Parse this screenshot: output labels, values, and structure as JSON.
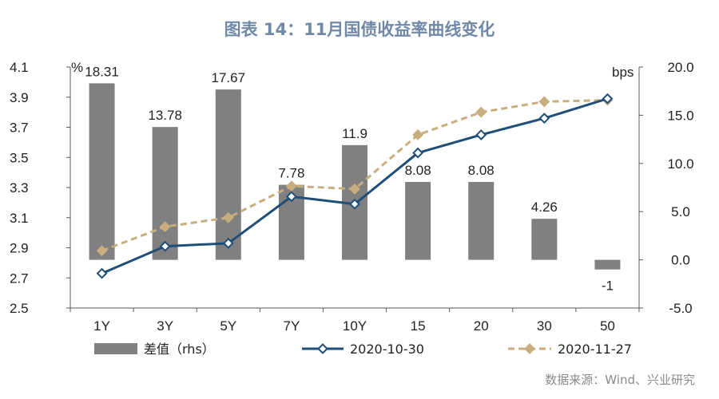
{
  "chart_data": {
    "type": "bar",
    "title": "图表 14：11月国债收益率曲线变化",
    "categories": [
      "1Y",
      "3Y",
      "5Y",
      "7Y",
      "10Y",
      "15",
      "20",
      "30",
      "50"
    ],
    "left_axis": {
      "unit": "%",
      "ylim": [
        2.5,
        4.1
      ],
      "ticks": [
        "2.5",
        "2.7",
        "2.9",
        "3.1",
        "3.3",
        "3.5",
        "3.7",
        "3.9",
        "4.1"
      ]
    },
    "right_axis": {
      "unit": "bps",
      "ylim": [
        -5,
        20
      ],
      "ticks": [
        "-5.0",
        "0.0",
        "5.0",
        "10.0",
        "15.0",
        "20.0"
      ]
    },
    "series": [
      {
        "name": "差值（rhs）",
        "type": "bar",
        "axis": "right",
        "color": "#808080",
        "values": [
          18.31,
          13.78,
          17.67,
          7.78,
          11.9,
          8.08,
          8.08,
          4.26,
          -1
        ],
        "labels": [
          "18.31",
          "13.78",
          "17.67",
          "7.78",
          "11.9",
          "8.08",
          "8.08",
          "4.26",
          "-1"
        ]
      },
      {
        "name": "2020-10-30",
        "type": "line",
        "axis": "left",
        "color": "#1f4e79",
        "values": [
          2.73,
          2.91,
          2.93,
          3.24,
          3.19,
          3.53,
          3.65,
          3.76,
          3.89
        ]
      },
      {
        "name": "2020-11-27",
        "type": "line",
        "axis": "left",
        "color": "#c8ad7f",
        "dashed": true,
        "values": [
          2.88,
          3.04,
          3.1,
          3.31,
          3.29,
          3.65,
          3.8,
          3.87,
          3.88
        ]
      }
    ],
    "legend_position": "bottom",
    "grid": false,
    "source": "数据来源：Wind、兴业研究"
  }
}
